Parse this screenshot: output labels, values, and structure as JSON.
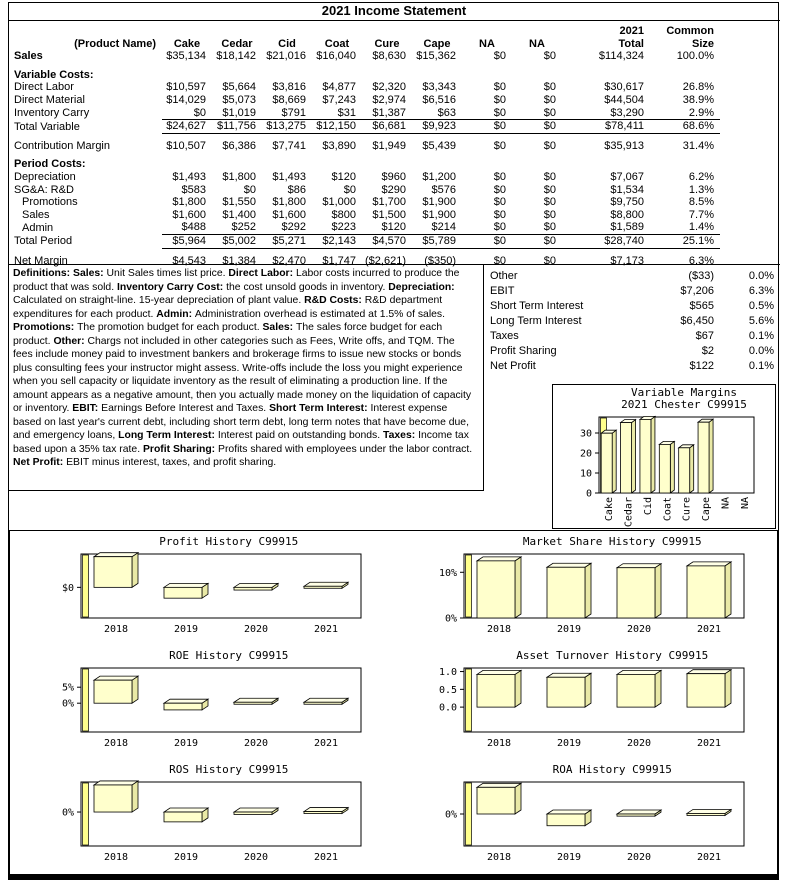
{
  "page_title": "2021 Income Statement",
  "colors": {
    "bar_front": "#ffffcc",
    "bar_top": "#ffffe6",
    "bar_side": "#e9e9a6",
    "wall": "#ffff8c",
    "border": "#000000"
  },
  "income_statement": {
    "header": {
      "product_col": "(Product Name)",
      "columns": [
        "Cake",
        "Cedar",
        "Cid",
        "Coat",
        "Cure",
        "Cape",
        "NA",
        "NA"
      ],
      "total_col": [
        "2021",
        "Total"
      ],
      "common_col": [
        "Common",
        "Size"
      ]
    },
    "rows": [
      {
        "label": "Sales",
        "bold": true,
        "values": [
          "$35,134",
          "$18,142",
          "$21,016",
          "$16,040",
          "$8,630",
          "$15,362",
          "$0",
          "$0"
        ],
        "total": "$114,324",
        "common": "100.0%"
      },
      {
        "label": "Variable Costs:",
        "bold": true,
        "gap": true
      },
      {
        "label": "Direct Labor",
        "values": [
          "$10,597",
          "$5,664",
          "$3,816",
          "$4,877",
          "$2,320",
          "$3,343",
          "$0",
          "$0"
        ],
        "total": "$30,617",
        "common": "26.8%"
      },
      {
        "label": "Direct Material",
        "values": [
          "$14,029",
          "$5,073",
          "$8,669",
          "$7,243",
          "$2,974",
          "$6,516",
          "$0",
          "$0"
        ],
        "total": "$44,504",
        "common": "38.9%"
      },
      {
        "label": "Inventory Carry",
        "rule": true,
        "values": [
          "$0",
          "$1,019",
          "$791",
          "$31",
          "$1,387",
          "$63",
          "$0",
          "$0"
        ],
        "total": "$3,290",
        "common": "2.9%"
      },
      {
        "label": "Total Variable",
        "rule": true,
        "values": [
          "$24,627",
          "$11,756",
          "$13,275",
          "$12,150",
          "$6,681",
          "$9,923",
          "$0",
          "$0"
        ],
        "total": "$78,411",
        "common": "68.6%"
      },
      {
        "label": "Contribution Margin",
        "gap": true,
        "values": [
          "$10,507",
          "$6,386",
          "$7,741",
          "$3,890",
          "$1,949",
          "$5,439",
          "$0",
          "$0"
        ],
        "total": "$35,913",
        "common": "31.4%"
      },
      {
        "label": "Period Costs:",
        "bold": true,
        "gap": true
      },
      {
        "label": "Depreciation",
        "values": [
          "$1,493",
          "$1,800",
          "$1,493",
          "$120",
          "$960",
          "$1,200",
          "$0",
          "$0"
        ],
        "total": "$7,067",
        "common": "6.2%"
      },
      {
        "label": "SG&A: R&D",
        "values": [
          "$583",
          "$0",
          "$86",
          "$0",
          "$290",
          "$576",
          "$0",
          "$0"
        ],
        "total": "$1,534",
        "common": "1.3%"
      },
      {
        "label": "Promotions",
        "indent": true,
        "values": [
          "$1,800",
          "$1,550",
          "$1,800",
          "$1,000",
          "$1,700",
          "$1,900",
          "$0",
          "$0"
        ],
        "total": "$9,750",
        "common": "8.5%"
      },
      {
        "label": "Sales",
        "indent": true,
        "values": [
          "$1,600",
          "$1,400",
          "$1,600",
          "$800",
          "$1,500",
          "$1,900",
          "$0",
          "$0"
        ],
        "total": "$8,800",
        "common": "7.7%"
      },
      {
        "label": "Admin",
        "indent": true,
        "rule": true,
        "values": [
          "$488",
          "$252",
          "$292",
          "$223",
          "$120",
          "$214",
          "$0",
          "$0"
        ],
        "total": "$1,589",
        "common": "1.4%"
      },
      {
        "label": "Total Period",
        "rule": true,
        "values": [
          "$5,964",
          "$5,002",
          "$5,271",
          "$2,143",
          "$4,570",
          "$5,789",
          "$0",
          "$0"
        ],
        "total": "$28,740",
        "common": "25.1%"
      },
      {
        "label": "Net Margin",
        "gap": true,
        "values": [
          "$4,543",
          "$1,384",
          "$2,470",
          "$1,747",
          "($2,621)",
          "($350)",
          "$0",
          "$0"
        ],
        "total": "$7,173",
        "common": "6.3%"
      }
    ]
  },
  "summary_table": {
    "rows": [
      {
        "label": "Other",
        "value": "($33)",
        "pct": "0.0%"
      },
      {
        "label": "EBIT",
        "value": "$7,206",
        "pct": "6.3%"
      },
      {
        "label": "Short Term Interest",
        "value": "$565",
        "pct": "0.5%"
      },
      {
        "label": "Long Term Interest",
        "value": "$6,450",
        "pct": "5.6%"
      },
      {
        "label": "Taxes",
        "value": "$67",
        "pct": "0.1%"
      },
      {
        "label": "Profit Sharing",
        "value": "$2",
        "pct": "0.0%"
      },
      {
        "label": "Net Profit",
        "value": "$122",
        "pct": "0.1%"
      }
    ]
  },
  "definitions": {
    "lead": "Definitions:",
    "items": [
      {
        "term": "Sales:",
        "text": "Unit Sales times list price."
      },
      {
        "term": "Direct Labor:",
        "text": "Labor costs incurred to produce the product that was sold."
      },
      {
        "term": "Inventory Carry Cost:",
        "text": "the cost unsold goods in inventory."
      },
      {
        "term": "Depreciation:",
        "text": "Calculated on straight-line. 15-year depreciation of plant value."
      },
      {
        "term": "R&D Costs:",
        "text": "R&D department expenditures for each product."
      },
      {
        "term": "Admin:",
        "text": "Administration overhead is estimated at 1.5% of sales."
      },
      {
        "term": "Promotions:",
        "text": "The promotion budget for each product."
      },
      {
        "term": "Sales:",
        "text": "The sales force budget for each product."
      },
      {
        "term": "Other:",
        "text": "Chargs not included in other categories such as Fees, Write offs, and TQM. The fees include money paid to investment bankers and brokerage firms to issue new stocks or bonds plus consulting fees your instructor might assess. Write-offs include the loss you might experience when you sell capacity or liquidate inventory as the result of eliminating a production line. If the amount appears as a negative amount, then you actually made money on the liquidation of capacity or inventory."
      },
      {
        "term": "EBIT:",
        "text": "Earnings Before Interest and Taxes."
      },
      {
        "term": "Short Term Interest:",
        "text": "Interest expense based on last year's current debt, including short term debt, long term notes that have become due, and emergency loans,"
      },
      {
        "term": "Long Term Interest:",
        "text": "Interest paid on outstanding bonds."
      },
      {
        "term": "Taxes:",
        "text": "Income tax based upon a 35% tax rate."
      },
      {
        "term": "Profit Sharing:",
        "text": "Profits shared with employees under the labor contract."
      },
      {
        "term": "Net Profit:",
        "text": "EBIT minus interest, taxes, and profit sharing."
      }
    ]
  },
  "chart_data": [
    {
      "id": "variable_margins",
      "type": "bar",
      "title_lines": [
        "Variable Margins",
        "2021 Chester C99915"
      ],
      "categories": [
        "Cake",
        "Cedar",
        "Cid",
        "Coat",
        "Cure",
        "Cape",
        "NA",
        "NA"
      ],
      "values": [
        29.9,
        35.2,
        36.8,
        24.3,
        22.6,
        35.4,
        0,
        0
      ],
      "ylim": [
        0,
        38
      ],
      "yticks": [
        {
          "v": 0,
          "label": "0"
        },
        {
          "v": 10,
          "label": "10"
        },
        {
          "v": 20,
          "label": "20"
        },
        {
          "v": 30,
          "label": "30"
        }
      ],
      "legend": "none",
      "grid": false
    },
    {
      "id": "profit_history",
      "type": "bar",
      "title_lines": [
        "Profit History C99915"
      ],
      "categories": [
        "2018",
        "2019",
        "2020",
        "2021"
      ],
      "values": [
        3.4,
        -1.2,
        -0.3,
        0.12
      ],
      "ylim": [
        -3.4,
        3.7
      ],
      "yticks": [
        {
          "v": 0,
          "label": "$0"
        }
      ],
      "legend": "none",
      "grid": false
    },
    {
      "id": "market_share_history",
      "type": "bar",
      "title_lines": [
        "Market Share History C99915"
      ],
      "categories": [
        "2018",
        "2019",
        "2020",
        "2021"
      ],
      "values": [
        12.5,
        11.1,
        11.0,
        11.4
      ],
      "ylim": [
        0,
        14
      ],
      "yticks": [
        {
          "v": 0,
          "label": "0%"
        },
        {
          "v": 10,
          "label": "10%"
        }
      ],
      "legend": "none",
      "grid": false
    },
    {
      "id": "roe_history",
      "type": "bar",
      "title_lines": [
        "ROE History C99915"
      ],
      "categories": [
        "2018",
        "2019",
        "2020",
        "2021"
      ],
      "values": [
        7.2,
        -2.1,
        0.3,
        0.3
      ],
      "ylim": [
        -9,
        11
      ],
      "yticks": [
        {
          "v": 5,
          "label": "5%"
        },
        {
          "v": 0,
          "label": "0%"
        }
      ],
      "legend": "none",
      "grid": false
    },
    {
      "id": "asset_turnover_history",
      "type": "bar",
      "title_lines": [
        "Asset Turnover History C99915"
      ],
      "categories": [
        "2018",
        "2019",
        "2020",
        "2021"
      ],
      "values": [
        0.92,
        0.84,
        0.92,
        0.94
      ],
      "ylim": [
        -0.7,
        1.1
      ],
      "yticks": [
        {
          "v": 1,
          "label": "1.0"
        },
        {
          "v": 0.5,
          "label": "0.5"
        },
        {
          "v": 0,
          "label": "0.0"
        }
      ],
      "legend": "none",
      "grid": false
    },
    {
      "id": "ros_history",
      "type": "bar",
      "title_lines": [
        "ROS History C99915"
      ],
      "categories": [
        "2018",
        "2019",
        "2020",
        "2021"
      ],
      "values": [
        5.5,
        -2.0,
        -0.5,
        0.1
      ],
      "ylim": [
        -6.9,
        6.1
      ],
      "yticks": [
        {
          "v": 0,
          "label": "0%"
        }
      ],
      "legend": "none",
      "grid": false
    },
    {
      "id": "roa_history",
      "type": "bar",
      "title_lines": [
        "ROA History C99915"
      ],
      "categories": [
        "2018",
        "2019",
        "2020",
        "2021"
      ],
      "values": [
        5.0,
        -2.2,
        -0.4,
        0.1
      ],
      "ylim": [
        -6,
        6
      ],
      "yticks": [
        {
          "v": 0,
          "label": "0%"
        }
      ],
      "legend": "none",
      "grid": false
    }
  ]
}
